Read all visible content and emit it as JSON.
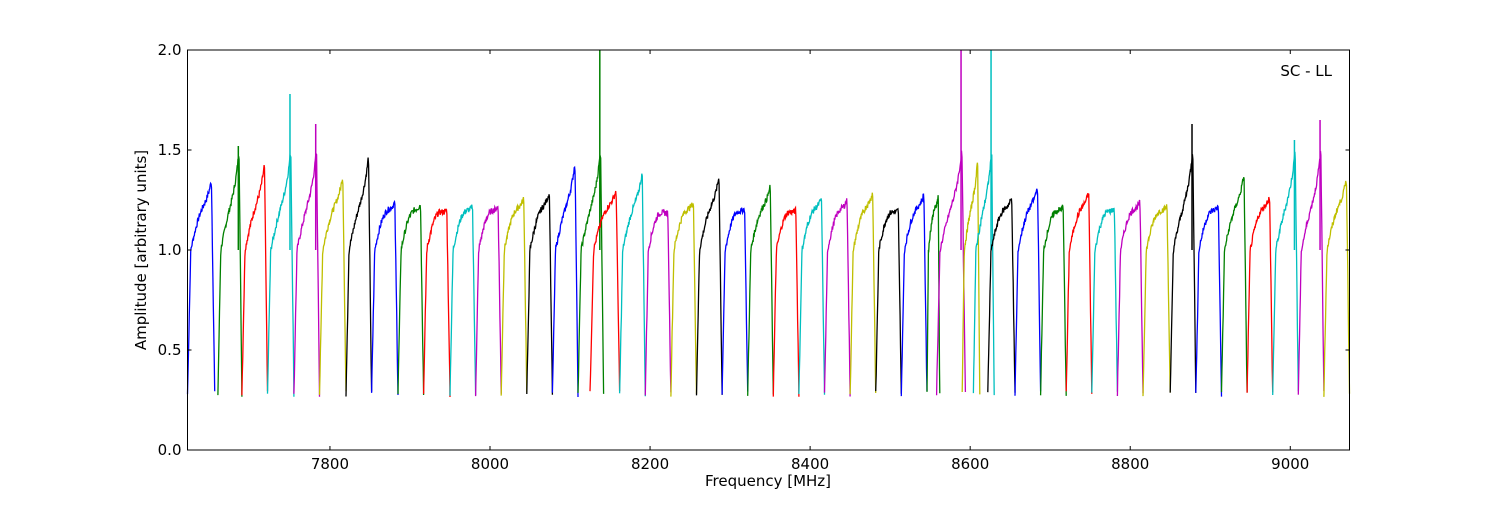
{
  "chart_data": {
    "type": "line",
    "title": "",
    "annotation": "SC - LL",
    "xlabel": "Frequency [MHz]",
    "ylabel": "Amplitude [arbitrary units]",
    "xlim": [
      7622,
      9074
    ],
    "ylim": [
      0.0,
      2.0
    ],
    "xticks": [
      7800,
      8000,
      8200,
      8400,
      8600,
      8800,
      9000
    ],
    "xtick_labels": [
      "7800",
      "8000",
      "8200",
      "8400",
      "8600",
      "8800",
      "9000"
    ],
    "yticks": [
      0.0,
      0.5,
      1.0,
      1.5,
      2.0
    ],
    "ytick_labels": [
      "0.0",
      "0.5",
      "1.0",
      "1.5",
      "2.0"
    ],
    "grid": false,
    "legend": "none",
    "colors": [
      "#0000ff",
      "#008000",
      "#ff0000",
      "#00bfbf",
      "#bf00bf",
      "#bfbf00",
      "#000000"
    ],
    "channel_peaks": [
      {
        "f_start": 7622,
        "f_end": 7656,
        "peak": 1.35,
        "color": "#0000ff"
      },
      {
        "f_start": 7660,
        "f_end": 7690,
        "peak": 1.52,
        "color": "#008000"
      },
      {
        "f_start": 7690,
        "f_end": 7722,
        "peak": 1.43,
        "color": "#ff0000"
      },
      {
        "f_start": 7722,
        "f_end": 7755,
        "peak": 1.78,
        "color": "#00bfbf"
      },
      {
        "f_start": 7755,
        "f_end": 7787,
        "peak": 1.63,
        "color": "#bf00bf"
      },
      {
        "f_start": 7787,
        "f_end": 7820,
        "peak": 1.37,
        "color": "#bfbf00"
      },
      {
        "f_start": 7820,
        "f_end": 7852,
        "peak": 1.47,
        "color": "#000000"
      },
      {
        "f_start": 7852,
        "f_end": 7885,
        "peak": 1.24,
        "color": "#0000ff"
      },
      {
        "f_start": 7885,
        "f_end": 7917,
        "peak": 1.23,
        "color": "#008000"
      },
      {
        "f_start": 7917,
        "f_end": 7950,
        "peak": 1.2,
        "color": "#ff0000"
      },
      {
        "f_start": 7950,
        "f_end": 7982,
        "peak": 1.22,
        "color": "#00bfbf"
      },
      {
        "f_start": 7982,
        "f_end": 8014,
        "peak": 1.22,
        "color": "#bf00bf"
      },
      {
        "f_start": 8014,
        "f_end": 8046,
        "peak": 1.26,
        "color": "#bfbf00"
      },
      {
        "f_start": 8046,
        "f_end": 8078,
        "peak": 1.29,
        "color": "#000000"
      },
      {
        "f_start": 8078,
        "f_end": 8110,
        "peak": 1.44,
        "color": "#0000ff"
      },
      {
        "f_start": 8110,
        "f_end": 8142,
        "peak": 2.0,
        "color": "#008000"
      },
      {
        "f_start": 8125,
        "f_end": 8162,
        "peak": 1.3,
        "color": "#ff0000"
      },
      {
        "f_start": 8162,
        "f_end": 8194,
        "peak": 1.39,
        "color": "#00bfbf"
      },
      {
        "f_start": 8194,
        "f_end": 8226,
        "peak": 1.19,
        "color": "#bf00bf"
      },
      {
        "f_start": 8226,
        "f_end": 8258,
        "peak": 1.24,
        "color": "#bfbf00"
      },
      {
        "f_start": 8258,
        "f_end": 8290,
        "peak": 1.37,
        "color": "#000000"
      },
      {
        "f_start": 8290,
        "f_end": 8322,
        "peak": 1.21,
        "color": "#0000ff"
      },
      {
        "f_start": 8322,
        "f_end": 8354,
        "peak": 1.32,
        "color": "#008000"
      },
      {
        "f_start": 8354,
        "f_end": 8386,
        "peak": 1.2,
        "color": "#ff0000"
      },
      {
        "f_start": 8386,
        "f_end": 8418,
        "peak": 1.26,
        "color": "#00bfbf"
      },
      {
        "f_start": 8418,
        "f_end": 8450,
        "peak": 1.25,
        "color": "#bf00bf"
      },
      {
        "f_start": 8450,
        "f_end": 8482,
        "peak": 1.29,
        "color": "#bfbf00"
      },
      {
        "f_start": 8482,
        "f_end": 8514,
        "peak": 1.2,
        "color": "#000000"
      },
      {
        "f_start": 8514,
        "f_end": 8546,
        "peak": 1.28,
        "color": "#0000ff"
      },
      {
        "f_start": 8546,
        "f_end": 8562,
        "peak": 1.27,
        "color": "#008000"
      },
      {
        "f_start": 8558,
        "f_end": 8594,
        "peak": 2.0,
        "color": "#bf00bf"
      },
      {
        "f_start": 8590,
        "f_end": 8612,
        "peak": 1.45,
        "color": "#bfbf00"
      },
      {
        "f_start": 8604,
        "f_end": 8630,
        "peak": 2.0,
        "color": "#00bfbf"
      },
      {
        "f_start": 8622,
        "f_end": 8656,
        "peak": 1.26,
        "color": "#000000"
      },
      {
        "f_start": 8656,
        "f_end": 8688,
        "peak": 1.32,
        "color": "#0000ff"
      },
      {
        "f_start": 8688,
        "f_end": 8720,
        "peak": 1.22,
        "color": "#008000"
      },
      {
        "f_start": 8720,
        "f_end": 8752,
        "peak": 1.29,
        "color": "#ff0000"
      },
      {
        "f_start": 8752,
        "f_end": 8784,
        "peak": 1.21,
        "color": "#00bfbf"
      },
      {
        "f_start": 8784,
        "f_end": 8816,
        "peak": 1.24,
        "color": "#bf00bf"
      },
      {
        "f_start": 8816,
        "f_end": 8850,
        "peak": 1.22,
        "color": "#bfbf00"
      },
      {
        "f_start": 8850,
        "f_end": 8882,
        "peak": 1.63,
        "color": "#000000"
      },
      {
        "f_start": 8882,
        "f_end": 8914,
        "peak": 1.22,
        "color": "#0000ff"
      },
      {
        "f_start": 8914,
        "f_end": 8946,
        "peak": 1.38,
        "color": "#008000"
      },
      {
        "f_start": 8946,
        "f_end": 8978,
        "peak": 1.27,
        "color": "#ff0000"
      },
      {
        "f_start": 8978,
        "f_end": 9010,
        "peak": 1.55,
        "color": "#00bfbf"
      },
      {
        "f_start": 9010,
        "f_end": 9042,
        "peak": 1.65,
        "color": "#bf00bf"
      },
      {
        "f_start": 9042,
        "f_end": 9074,
        "peak": 1.36,
        "color": "#bfbf00"
      }
    ]
  }
}
